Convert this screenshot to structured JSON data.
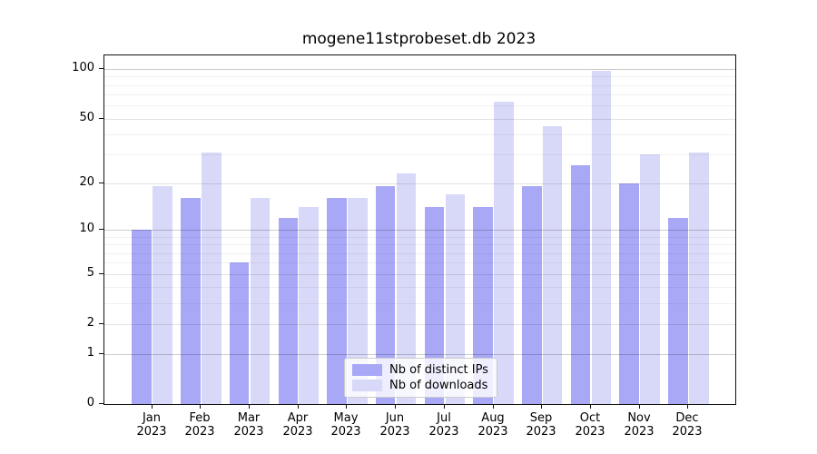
{
  "figure": {
    "title": "mogene11stprobeset.db 2023"
  },
  "chart_data": {
    "type": "bar",
    "title": "mogene11stprobeset.db 2023",
    "categories": [
      "Jan",
      "Feb",
      "Mar",
      "Apr",
      "May",
      "Jun",
      "Jul",
      "Aug",
      "Sep",
      "Oct",
      "Nov",
      "Dec"
    ],
    "x_tick_second_line": "2023",
    "series": [
      {
        "name": "Nb of distinct IPs",
        "color": "#a8a8f7",
        "values": [
          10,
          16,
          6,
          12,
          16,
          19,
          14,
          14,
          19,
          26,
          20,
          12
        ]
      },
      {
        "name": "Nb of downloads",
        "color": "#d8d8f8",
        "values": [
          19,
          31,
          16,
          14,
          16,
          23,
          17,
          63,
          45,
          97,
          30,
          31
        ]
      }
    ],
    "xlabel": "",
    "ylabel": "",
    "yscale": "log10(1+v)",
    "ylim": [
      0,
      121
    ],
    "yticks": [
      0,
      1,
      2,
      5,
      10,
      20,
      50,
      100
    ],
    "minor_yticks": [
      3,
      4,
      6,
      7,
      8,
      9,
      30,
      40,
      60,
      70,
      80,
      90
    ],
    "grid": true,
    "legend_position": "lower center",
    "colors": {
      "spine": "#111111",
      "major_grid": "#c7c7c7",
      "labeled_grid": "#e2e2e2",
      "minor_grid": "#efefef",
      "background": "#ffffff"
    }
  }
}
